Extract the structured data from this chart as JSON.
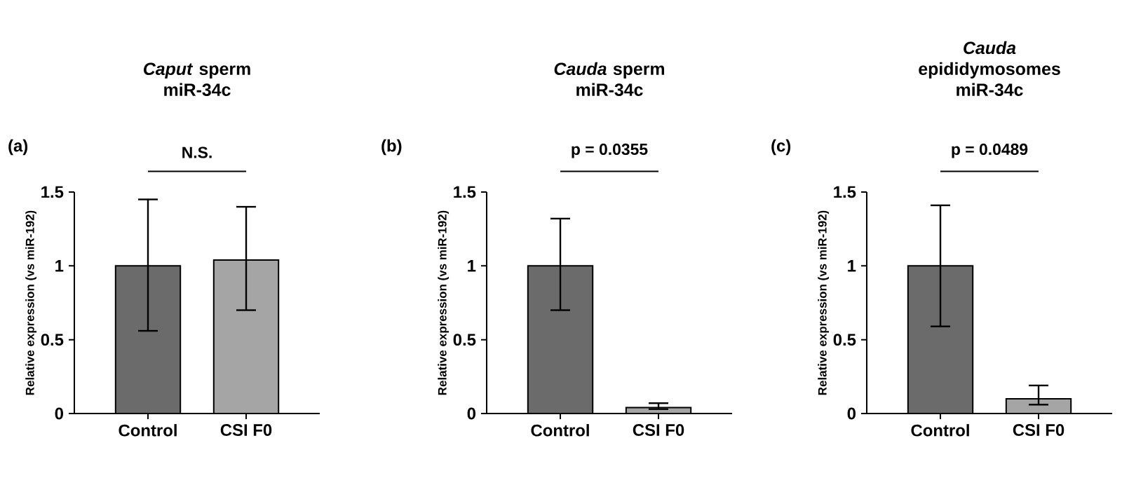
{
  "chart_data": [
    {
      "type": "bar",
      "title": "*Caput* sperm miR-34c",
      "ylabel": "Relative expression (vs miR-192)",
      "categories": [
        "Control",
        "CSI F0"
      ],
      "values": [
        1.0,
        1.04
      ],
      "colors": [
        "#6b6b6b",
        "#a5a5a5"
      ],
      "errors": [
        [
          0.56,
          1.45
        ],
        [
          0.7,
          1.4
        ]
      ],
      "ylim": [
        0,
        1.5
      ],
      "yticks": [
        0,
        0.5,
        1,
        1.5
      ],
      "annotations": [
        "(a)",
        "N.S."
      ],
      "grid": false
    },
    {
      "type": "bar",
      "title": "*Cauda* sperm miR-34c",
      "ylabel": "Relative expression (vs miR-192)",
      "categories": [
        "Control",
        "CSI F0"
      ],
      "values": [
        1.0,
        0.04
      ],
      "colors": [
        "#6b6b6b",
        "#a5a5a5"
      ],
      "errors": [
        [
          0.7,
          1.32
        ],
        [
          0.03,
          0.07
        ]
      ],
      "ylim": [
        0,
        1.5
      ],
      "yticks": [
        0,
        0.5,
        1,
        1.5
      ],
      "annotations": [
        "(b)",
        "p = 0.0355"
      ],
      "grid": false
    },
    {
      "type": "bar",
      "title": "*Cauda* epididymosomes miR-34c",
      "ylabel": "Relative expression (vs miR-192)",
      "categories": [
        "Control",
        "CSI F0"
      ],
      "values": [
        1.0,
        0.1
      ],
      "colors": [
        "#6b6b6b",
        "#a5a5a5"
      ],
      "errors": [
        [
          0.59,
          1.41
        ],
        [
          0.06,
          0.19
        ]
      ],
      "ylim": [
        0,
        1.5
      ],
      "yticks": [
        0,
        0.5,
        1,
        1.5
      ],
      "annotations": [
        "(c)",
        "p = 0.0489"
      ],
      "grid": false
    }
  ]
}
